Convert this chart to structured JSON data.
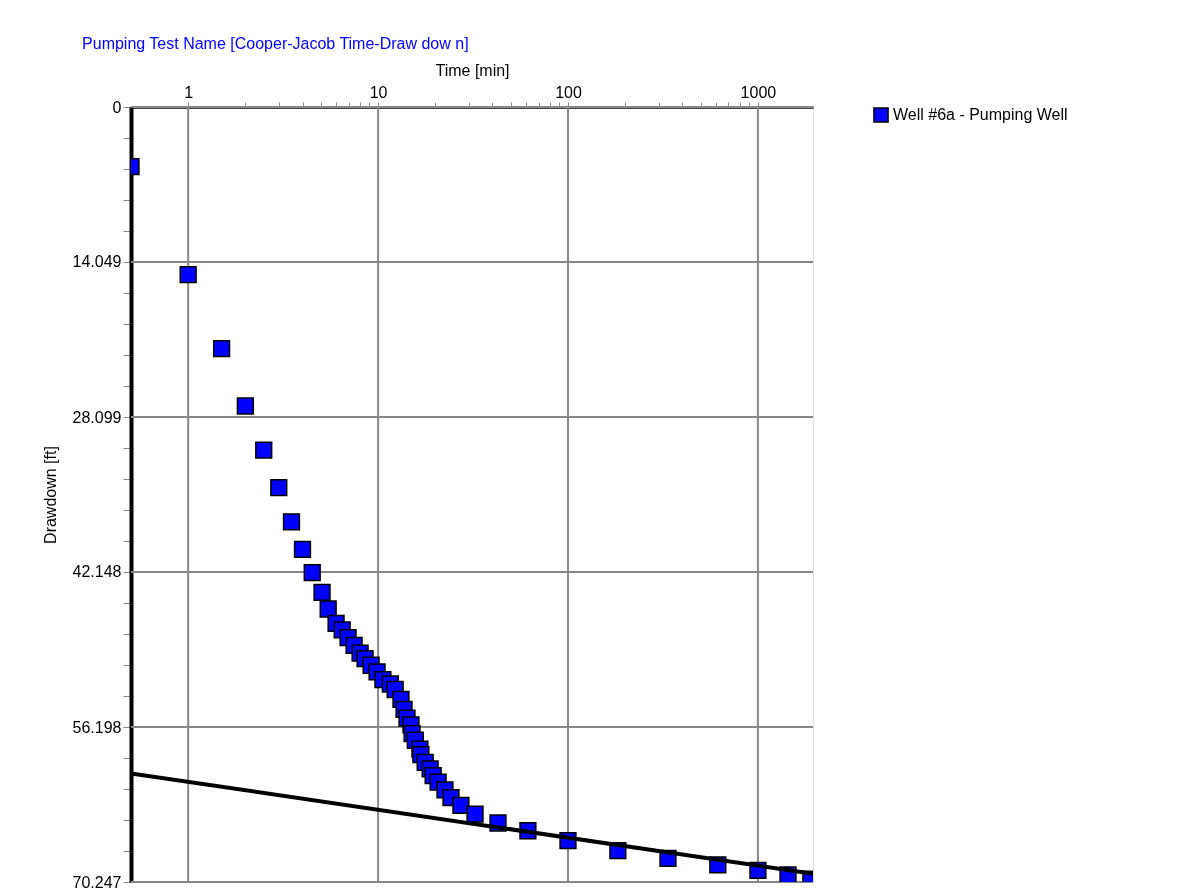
{
  "chart_data": {
    "type": "scatter",
    "title": "Pumping Test Name [Cooper-Jacob Time-Draw dow n]",
    "xlabel": "Time [min]",
    "ylabel": "Drawdown [ft]",
    "log": "x",
    "xlim": [
      0.5,
      1950
    ],
    "ylim": [
      70.247,
      0
    ],
    "xticks": [
      1,
      {
        "value": 2,
        "label": null
      },
      {
        "value": 3,
        "label": null
      },
      {
        "value": 4,
        "label": null
      },
      {
        "value": 5,
        "label": null
      },
      {
        "value": 6,
        "label": null
      },
      {
        "value": 7,
        "label": null
      },
      {
        "value": 8,
        "label": null
      },
      {
        "value": 9,
        "label": null
      },
      10,
      {
        "value": 20,
        "label": null
      },
      {
        "value": 30,
        "label": null
      },
      {
        "value": 40,
        "label": null
      },
      {
        "value": 50,
        "label": null
      },
      {
        "value": 60,
        "label": null
      },
      {
        "value": 70,
        "label": null
      },
      {
        "value": 80,
        "label": null
      },
      {
        "value": 90,
        "label": null
      },
      100,
      {
        "value": 200,
        "label": null
      },
      {
        "value": 300,
        "label": null
      },
      {
        "value": 400,
        "label": null
      },
      {
        "value": 500,
        "label": null
      },
      {
        "value": 600,
        "label": null
      },
      {
        "value": 700,
        "label": null
      },
      {
        "value": 800,
        "label": null
      },
      {
        "value": 900,
        "label": null
      },
      1000
    ],
    "yticks": [
      0,
      {
        "value": 2.81,
        "label": null
      },
      {
        "value": 5.62,
        "label": null
      },
      {
        "value": 8.43,
        "label": null
      },
      {
        "value": 11.24,
        "label": null
      },
      14.049,
      {
        "value": 16.859,
        "label": null
      },
      {
        "value": 19.669,
        "label": null
      },
      {
        "value": 22.479,
        "label": null
      },
      {
        "value": 25.289,
        "label": null
      },
      28.099,
      {
        "value": 30.909,
        "label": null
      },
      {
        "value": 33.719,
        "label": null
      },
      {
        "value": 36.529,
        "label": null
      },
      {
        "value": 39.339,
        "label": null
      },
      42.148,
      {
        "value": 44.958,
        "label": null
      },
      {
        "value": 47.768,
        "label": null
      },
      {
        "value": 50.578,
        "label": null
      },
      {
        "value": 53.388,
        "label": null
      },
      56.198,
      {
        "value": 59.008,
        "label": null
      },
      {
        "value": 61.818,
        "label": null
      },
      {
        "value": 64.628,
        "label": null
      },
      {
        "value": 67.437,
        "label": null
      },
      70.247
    ],
    "grid": true,
    "legend": "right",
    "marker": "square",
    "series": [
      {
        "name": "Well #6a - Pumping Well",
        "color": "#0000ff",
        "x": [
          0.5,
          1,
          1.5,
          2,
          2.5,
          3,
          3.5,
          4,
          4.5,
          5.07,
          5.46,
          6.01,
          6.47,
          6.95,
          7.48,
          8.04,
          8.54,
          9.19,
          9.88,
          10.6,
          11.6,
          12.3,
          13.2,
          13.7,
          14.2,
          14.9,
          15.1,
          15.7,
          16.6,
          16.8,
          17.7,
          18.8,
          19.5,
          20.7,
          22.5,
          24.2,
          27.3,
          32.4,
          42.8,
          61.5,
          100,
          183,
          336,
          615,
          1000,
          1440,
          1900
        ],
        "values": [
          5.4,
          15.2,
          21.9,
          27.1,
          31.1,
          34.5,
          37.6,
          40.1,
          42.2,
          44.0,
          45.5,
          46.8,
          47.4,
          48.1,
          48.8,
          49.5,
          50.0,
          50.6,
          51.2,
          51.9,
          52.3,
          52.8,
          53.7,
          54.6,
          55.4,
          56.0,
          56.8,
          57.4,
          58.2,
          58.7,
          59.4,
          60.0,
          60.6,
          61.2,
          61.9,
          62.6,
          63.3,
          64.1,
          64.9,
          65.6,
          66.5,
          67.4,
          68.1,
          68.7,
          69.2,
          69.6,
          70.0
        ]
      },
      {
        "type": "line",
        "marker": "none",
        "color": "#000000",
        "x": [
          0.5,
          1950
        ],
        "values": [
          60.4,
          69.5
        ]
      }
    ]
  }
}
